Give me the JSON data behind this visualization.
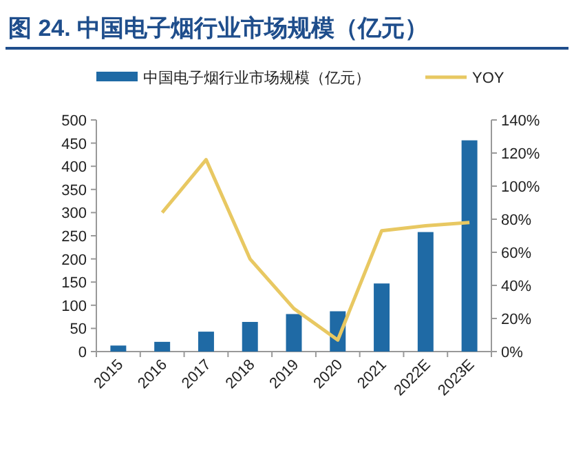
{
  "chart_data": {
    "type": "bar",
    "title": "图 24. 中国电子烟行业市场规模（亿元）",
    "categories": [
      "2015",
      "2016",
      "2017",
      "2018",
      "2019",
      "2020",
      "2021",
      "2022E",
      "2023E"
    ],
    "series": [
      {
        "name": "中国电子烟行业市场规模（亿元）",
        "color": "#1f6aa5",
        "values": [
          13,
          21,
          43,
          64,
          81,
          87,
          147,
          258,
          456
        ]
      },
      {
        "name": "YOY",
        "type": "line",
        "axis": "y2",
        "color": "#e8c862",
        "values": [
          null,
          84,
          116,
          56,
          26,
          7,
          73,
          76,
          78
        ]
      }
    ],
    "ylim": [
      0,
      500
    ],
    "yticks": [
      0,
      50,
      100,
      150,
      200,
      250,
      300,
      350,
      400,
      450,
      500
    ],
    "y2lim": [
      0,
      140
    ],
    "y2ticks": [
      {
        "value": 0,
        "label": "0%"
      },
      {
        "value": 20,
        "label": "20%"
      },
      {
        "value": 40,
        "label": "40%"
      },
      {
        "value": 60,
        "label": "60%"
      },
      {
        "value": 80,
        "label": "80%"
      },
      {
        "value": 100,
        "label": "100%"
      },
      {
        "value": 120,
        "label": "120%"
      },
      {
        "value": 140,
        "label": "140%"
      }
    ],
    "grid": false,
    "legend": "top",
    "marker": "none",
    "line_style": "solid"
  }
}
